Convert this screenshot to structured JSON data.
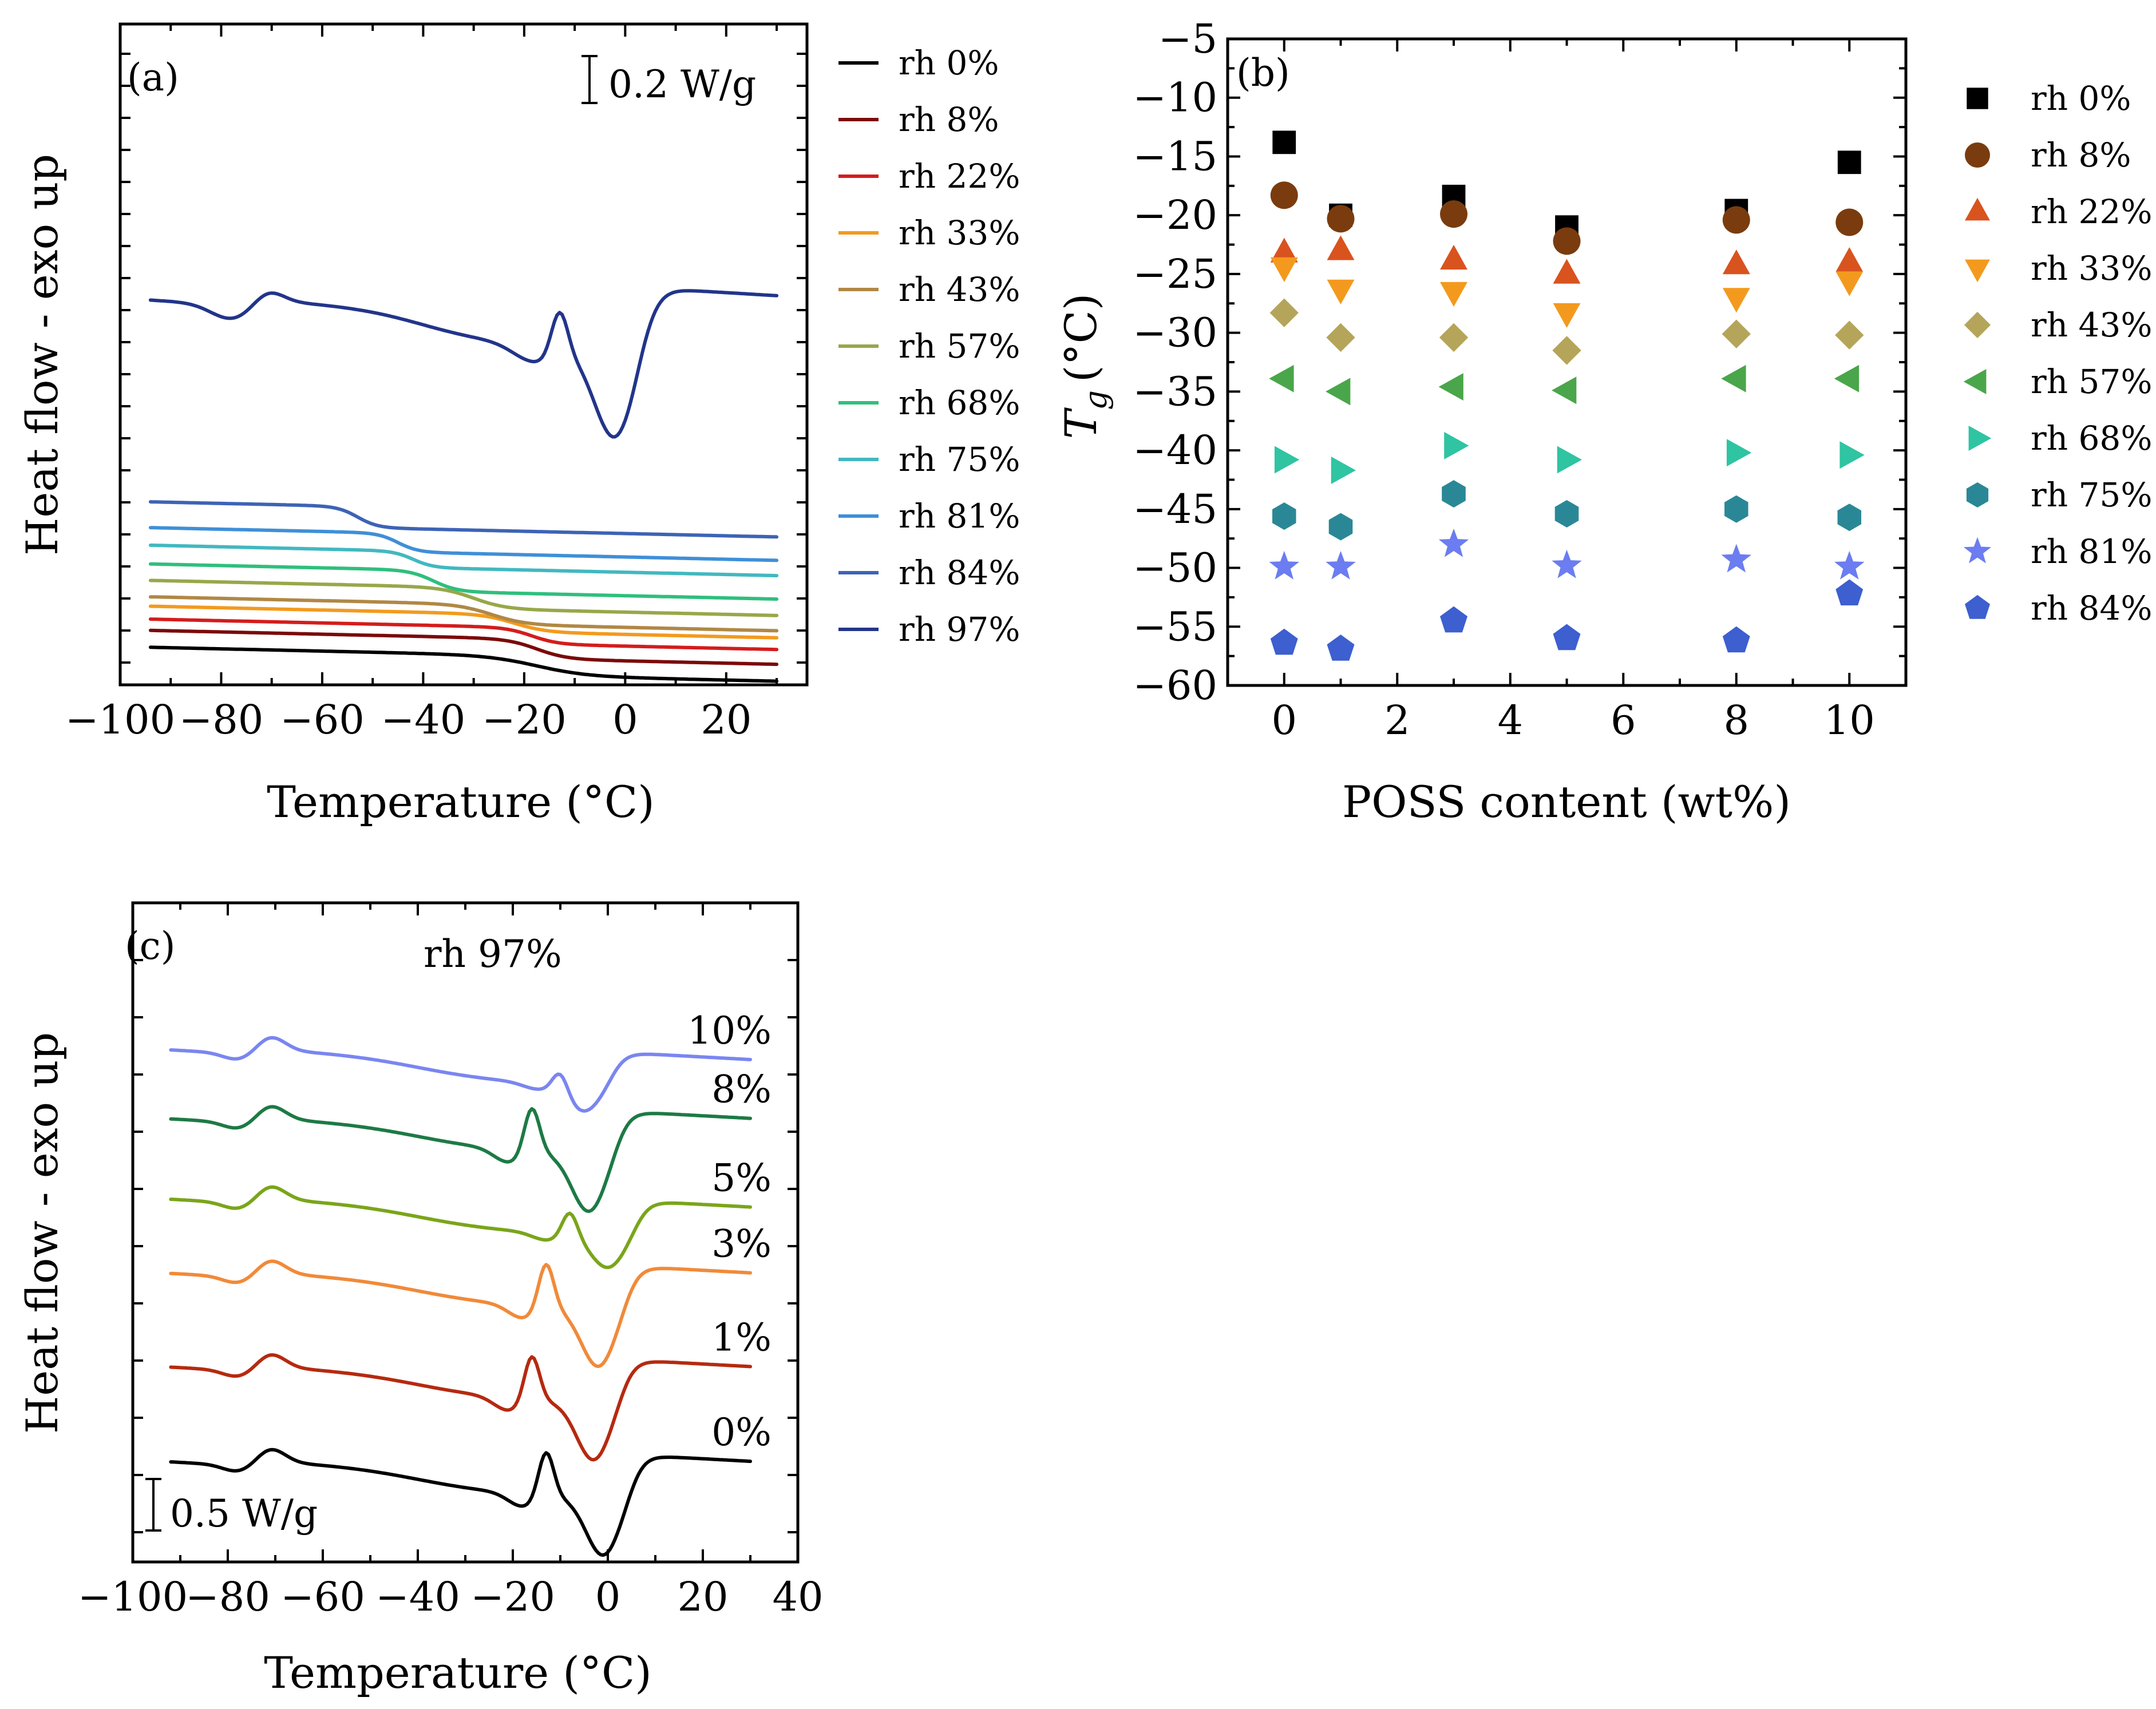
{
  "chart_data": [
    {
      "panel": "a",
      "type": "line",
      "panel_label": "(a)",
      "xlabel": "Temperature (°C)",
      "ylabel": "Heat flow - exo up",
      "xlim": [
        -100,
        36
      ],
      "xticks": [
        -100,
        -80,
        -60,
        -40,
        -20,
        0,
        20
      ],
      "xtick_labels": [
        "−100",
        "−80",
        "−60",
        "−40",
        "−20",
        "0",
        "20"
      ],
      "scale_bar": "0.2 W/g",
      "y_units_per_scale_bar": 0.2,
      "series": [
        {
          "name": "rh 0%",
          "color": "#000000",
          "offset": 0.0,
          "step_onset": -30,
          "step_end": -5,
          "step_height": 0.085
        },
        {
          "name": "rh 8%",
          "color": "#7a0a0a",
          "offset": 0.072,
          "step_onset": -25,
          "step_end": -10,
          "step_height": 0.085
        },
        {
          "name": "rh 22%",
          "color": "#d41c1c",
          "offset": 0.12,
          "step_onset": -25,
          "step_end": -12,
          "step_height": 0.07
        },
        {
          "name": "rh 33%",
          "color": "#f39a1e",
          "offset": 0.175,
          "step_onset": -30,
          "step_end": -14,
          "step_height": 0.075
        },
        {
          "name": "rh 43%",
          "color": "#b08845",
          "offset": 0.215,
          "step_onset": -35,
          "step_end": -18,
          "step_height": 0.085
        },
        {
          "name": "rh 57%",
          "color": "#97a84a",
          "offset": 0.285,
          "step_onset": -38,
          "step_end": -22,
          "step_height": 0.09
        },
        {
          "name": "rh 68%",
          "color": "#2fbf7d",
          "offset": 0.355,
          "step_onset": -44,
          "step_end": -32,
          "step_height": 0.09
        },
        {
          "name": "rh 75%",
          "color": "#42b8c0",
          "offset": 0.435,
          "step_onset": -47,
          "step_end": -37,
          "step_height": 0.07
        },
        {
          "name": "rh 81%",
          "color": "#3f8fd8",
          "offset": 0.51,
          "step_onset": -50,
          "step_end": -40,
          "step_height": 0.08
        },
        {
          "name": "rh 84%",
          "color": "#3d63b5",
          "offset": 0.62,
          "step_onset": -58,
          "step_end": -48,
          "step_height": 0.09
        },
        {
          "name": "rh 97%",
          "color": "#22358a",
          "offset": 1.0
        }
      ]
    },
    {
      "panel": "b",
      "type": "scatter",
      "panel_label": "(b)",
      "xlabel": "POSS content (wt%)",
      "ylabel": "T g (°C)",
      "ylabel_symbol": "T",
      "ylabel_subscript": "g",
      "ylabel_unit": "(°C)",
      "xlim": [
        -1,
        11
      ],
      "ylim": [
        -60,
        -5
      ],
      "xticks": [
        0,
        2,
        4,
        6,
        8,
        10
      ],
      "xtick_labels": [
        "0",
        "2",
        "4",
        "6",
        "8",
        "10"
      ],
      "yticks": [
        -60,
        -55,
        -50,
        -45,
        -40,
        -35,
        -30,
        -25,
        -20,
        -15,
        -10,
        -5
      ],
      "ytick_labels": [
        "−60",
        "−55",
        "−50",
        "−45",
        "−40",
        "−35",
        "−30",
        "−25",
        "−20",
        "−15",
        "−10",
        "−5"
      ],
      "x": [
        0,
        1,
        3,
        5,
        8,
        10
      ],
      "series": [
        {
          "name": "rh 0%",
          "color": "#000000",
          "marker": "square",
          "values": [
            -13.8,
            -20.0,
            -18.4,
            -21.0,
            -19.6,
            -15.5
          ]
        },
        {
          "name": "rh 8%",
          "color": "#7a3c0e",
          "marker": "circle",
          "values": [
            -18.3,
            -20.3,
            -19.9,
            -22.2,
            -20.4,
            -20.6
          ]
        },
        {
          "name": "rh 22%",
          "color": "#d9531e",
          "marker": "triangle-up",
          "values": [
            -23.2,
            -23.0,
            -23.8,
            -25.0,
            -24.2,
            -24.0
          ]
        },
        {
          "name": "rh 33%",
          "color": "#f39a1e",
          "marker": "triangle-down",
          "values": [
            -24.4,
            -26.3,
            -26.5,
            -28.3,
            -27.0,
            -25.6
          ]
        },
        {
          "name": "rh 43%",
          "color": "#b5a55a",
          "marker": "diamond",
          "values": [
            -28.3,
            -30.4,
            -30.4,
            -31.5,
            -30.1,
            -30.2
          ]
        },
        {
          "name": "rh 57%",
          "color": "#4aa64a",
          "marker": "triangle-left",
          "values": [
            -33.9,
            -35.0,
            -34.6,
            -34.9,
            -33.9,
            -33.9
          ]
        },
        {
          "name": "rh 68%",
          "color": "#2fc4a2",
          "marker": "triangle-right",
          "values": [
            -40.8,
            -41.7,
            -39.6,
            -40.8,
            -40.2,
            -40.4
          ]
        },
        {
          "name": "rh 75%",
          "color": "#2a8896",
          "marker": "hexagon",
          "values": [
            -45.6,
            -46.5,
            -43.7,
            -45.4,
            -45.0,
            -45.7
          ]
        },
        {
          "name": "rh 81%",
          "color": "#6b7df0",
          "marker": "star",
          "values": [
            -49.9,
            -49.9,
            -48.0,
            -49.8,
            -49.3,
            -49.9
          ]
        },
        {
          "name": "rh 84%",
          "color": "#3d5fcf",
          "marker": "pentagon",
          "values": [
            -56.4,
            -56.9,
            -54.5,
            -56.0,
            -56.2,
            -52.2
          ]
        }
      ]
    },
    {
      "panel": "c",
      "type": "line",
      "panel_label": "(c)",
      "subtitle": "rh 97%",
      "xlabel": "Temperature (°C)",
      "ylabel": "Heat flow - exo up",
      "xlim": [
        -100,
        40
      ],
      "xticks": [
        -100,
        -80,
        -60,
        -40,
        -20,
        0,
        20,
        40
      ],
      "xtick_labels": [
        "−100",
        "−80",
        "−60",
        "−40",
        "−20",
        "0",
        "20",
        "40"
      ],
      "scale_bar": "0.5 W/g",
      "y_units_per_scale_bar": 0.5,
      "series": [
        {
          "name": "0%",
          "color": "#000000",
          "offset": 0.0,
          "cold_cryst_peak": -13,
          "melt_min": -1,
          "depth": 1.0
        },
        {
          "name": "1%",
          "color": "#b52a10",
          "offset": 0.92,
          "cold_cryst_peak": -16,
          "melt_min": -3,
          "depth": 1.0
        },
        {
          "name": "3%",
          "color": "#f08a3a",
          "offset": 1.83,
          "cold_cryst_peak": -13,
          "melt_min": -2,
          "depth": 1.0
        },
        {
          "name": "5%",
          "color": "#7aa51a",
          "offset": 2.55,
          "cold_cryst_peak": -8,
          "melt_min": 0,
          "depth": 0.55
        },
        {
          "name": "8%",
          "color": "#1d7a45",
          "offset": 3.33,
          "cold_cryst_peak": -16,
          "melt_min": -4,
          "depth": 1.0
        },
        {
          "name": "10%",
          "color": "#7a86f0",
          "offset": 4.0,
          "cold_cryst_peak": -10,
          "melt_min": -5,
          "depth": 0.45
        }
      ]
    }
  ]
}
